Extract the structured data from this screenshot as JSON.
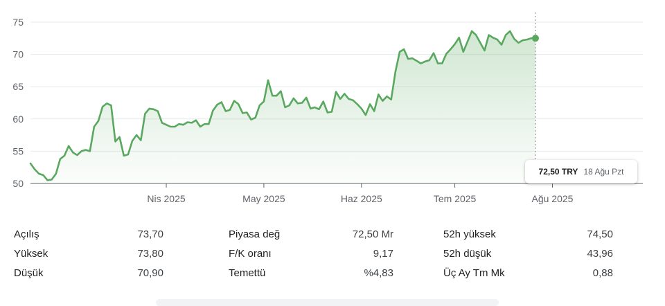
{
  "chart_data": {
    "type": "area",
    "yticks": [
      50,
      55,
      60,
      65,
      70,
      75
    ],
    "ylim": [
      50,
      76.5
    ],
    "xlim": [
      0,
      143
    ],
    "xticks": [
      {
        "label": "Nis 2025",
        "x": 32
      },
      {
        "label": "May 2025",
        "x": 55
      },
      {
        "label": "Haz 2025",
        "x": 78
      },
      {
        "label": "Tem 2025",
        "x": 100
      },
      {
        "label": "Ağu 2025",
        "x": 123
      }
    ],
    "values": [
      53.1,
      52.2,
      51.5,
      51.3,
      50.5,
      50.6,
      51.5,
      53.8,
      54.3,
      55.8,
      54.8,
      54.4,
      55.0,
      55.2,
      55.0,
      58.8,
      59.7,
      61.9,
      62.4,
      62.1,
      56.5,
      57.2,
      54.3,
      54.5,
      56.6,
      57.5,
      56.7,
      60.8,
      61.6,
      61.5,
      61.2,
      59.4,
      59.1,
      58.8,
      58.8,
      59.2,
      59.1,
      59.5,
      59.4,
      59.8,
      58.8,
      59.2,
      59.2,
      61.3,
      62.2,
      62.6,
      61.2,
      61.4,
      62.8,
      62.3,
      60.9,
      61.0,
      59.9,
      60.2,
      62.1,
      62.7,
      66.0,
      63.6,
      63.6,
      64.3,
      61.8,
      62.1,
      63.2,
      62.4,
      62.5,
      63.3,
      61.6,
      61.8,
      61.5,
      62.7,
      61.0,
      61.1,
      64.2,
      63.1,
      63.9,
      63.1,
      62.9,
      62.3,
      61.6,
      60.6,
      62.3,
      61.2,
      63.8,
      62.8,
      63.5,
      63.0,
      67.3,
      70.4,
      70.8,
      69.3,
      69.4,
      69.0,
      68.6,
      68.9,
      69.1,
      70.2,
      68.6,
      68.6,
      70.1,
      70.8,
      71.6,
      72.6,
      70.4,
      72.0,
      73.6,
      73.0,
      71.8,
      70.6,
      73.0,
      72.6,
      72.3,
      71.5,
      73.0,
      73.6,
      72.4,
      71.8,
      72.2,
      72.3,
      72.5,
      72.5
    ],
    "last_point": {
      "price": "72,50 TRY",
      "date": "18 Ağu Pzt"
    },
    "line_color": "#5aa85f",
    "fill_color": "#5aa85f",
    "grid": true
  },
  "stats": {
    "rows": [
      [
        {
          "label": "Açılış",
          "value": "73,70"
        },
        {
          "label": "Piyasa değ",
          "value": "72,50 Mr"
        },
        {
          "label": "52h yüksek",
          "value": "74,50"
        }
      ],
      [
        {
          "label": "Yüksek",
          "value": "73,80"
        },
        {
          "label": "F/K oranı",
          "value": "9,17"
        },
        {
          "label": "52h düşük",
          "value": "43,96"
        }
      ],
      [
        {
          "label": "Düşük",
          "value": "70,90"
        },
        {
          "label": "Temettü",
          "value": "%4,83"
        },
        {
          "label": "Üç Ay Tm Mk",
          "value": "0,88"
        }
      ]
    ]
  }
}
